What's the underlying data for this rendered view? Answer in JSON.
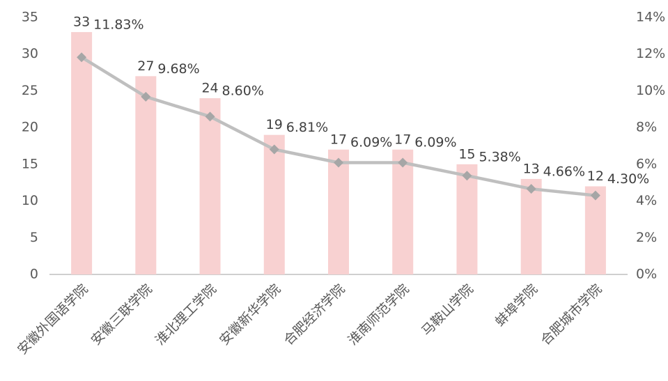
{
  "chart_data": {
    "type": "bar_line",
    "categories": [
      "安徽外国语学院",
      "安徽三联学院",
      "淮北理工学院",
      "安徽新华学院",
      "合肥经济学院",
      "淮南师范学院",
      "马鞍山学院",
      "蚌埠学院",
      "合肥城市学院"
    ],
    "series": [
      {
        "type": "bar",
        "color": "#f8d1d1",
        "values": [
          33,
          27,
          24,
          19,
          17,
          17,
          15,
          13,
          12
        ]
      },
      {
        "type": "line",
        "axis": "y2",
        "color": "#bfbfbf",
        "values": [
          11.83,
          9.68,
          8.6,
          6.81,
          6.09,
          6.09,
          5.38,
          4.66,
          4.3
        ],
        "value_labels": [
          "11.83%",
          "9.68%",
          "8.60%",
          "6.81%",
          "6.09%",
          "6.09%",
          "5.38%",
          "4.66%",
          "4.30%"
        ]
      }
    ],
    "ylim": [
      0,
      35
    ],
    "yticks": [
      0,
      5,
      10,
      15,
      20,
      25,
      30,
      35
    ],
    "y2lim": [
      0,
      14
    ],
    "y2ticks": [
      {
        "value": 0,
        "label": "0%"
      },
      {
        "value": 2,
        "label": "2%"
      },
      {
        "value": 4,
        "label": "4%"
      },
      {
        "value": 6,
        "label": "6%"
      },
      {
        "value": 8,
        "label": "8%"
      },
      {
        "value": 10,
        "label": "10%"
      },
      {
        "value": 12,
        "label": "12%"
      },
      {
        "value": 14,
        "label": "14%"
      }
    ],
    "grid": false
  }
}
